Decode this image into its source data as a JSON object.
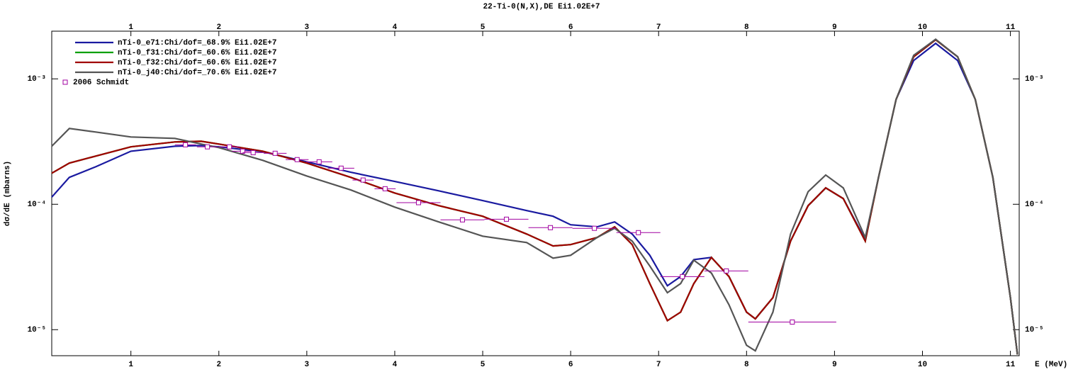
{
  "chart_data": {
    "type": "line",
    "title": "22-Ti-0(N,X),DE Ei1.02E+7",
    "xlabel": "E (MeV)",
    "ylabel": "dσ/dE (mbarns)",
    "xlim": [
      0.1,
      11.1
    ],
    "ylim": [
      6.2e-06,
      0.0024
    ],
    "log_y": true,
    "xticks": [
      1,
      2,
      3,
      4,
      5,
      6,
      7,
      8,
      9,
      10,
      11
    ],
    "yticks": [
      {
        "value": 1e-05,
        "label": "10⁻⁵"
      },
      {
        "value": 0.0001,
        "label": "10⁻⁴"
      },
      {
        "value": 0.001,
        "label": "10⁻³"
      }
    ],
    "legend": "upper left",
    "x": [
      0.1,
      0.3,
      0.6,
      1,
      1.5,
      1.8,
      2,
      2.5,
      3,
      3.5,
      4,
      4.5,
      5,
      5.5,
      5.8,
      6,
      6.3,
      6.5,
      6.7,
      6.9,
      7.1,
      7.25,
      7.4,
      7.6,
      7.8,
      8.0,
      8.1,
      8.3,
      8.5,
      8.7,
      8.9,
      9.1,
      9.35,
      9.5,
      9.7,
      9.9,
      10.15,
      10.4,
      10.6,
      10.8,
      11.0,
      11.08
    ],
    "series": [
      {
        "name": "nTi-0_e71:Chi/dof=_68.9% Ei1.02E+7",
        "color": "#1a1aa0",
        "values": [
          0.000114,
          0.000164,
          0.000199,
          0.000265,
          0.00029,
          0.000294,
          0.000287,
          0.000262,
          0.000218,
          0.00018,
          0.000152,
          0.000128,
          0.000107,
          8.9e-05,
          8.02e-05,
          6.86e-05,
          6.6e-05,
          7.23e-05,
          5.79e-05,
          3.92e-05,
          2.24e-05,
          2.65e-05,
          3.62e-05,
          3.77e-05,
          2.65e-05,
          1.38e-05,
          1.22e-05,
          1.8e-05,
          5.08e-05,
          9.75e-05,
          0.000135,
          0.000111,
          5.22e-05,
          0.000164,
          0.000686,
          0.0014,
          0.00192,
          0.0014,
          0.000686,
          0.000164,
          1.8e-05,
          6.34e-06
        ]
      },
      {
        "name": "nTi-0_f31:Chi/dof=_60.6% Ei1.02E+7",
        "color": "#00a000",
        "values": [
          0.000177,
          0.000213,
          0.000242,
          0.000287,
          0.000314,
          0.000318,
          0.000302,
          0.000265,
          0.000213,
          0.000164,
          0.000123,
          9.75e-05,
          8.02e-05,
          5.79e-05,
          4.65e-05,
          4.77e-05,
          5.43e-05,
          6.6e-05,
          4.77e-05,
          2.33e-05,
          1.18e-05,
          1.38e-05,
          2.33e-05,
          3.77e-05,
          2.65e-05,
          1.38e-05,
          1.22e-05,
          1.8e-05,
          5.08e-05,
          9.75e-05,
          0.000135,
          0.000111,
          5.08e-05,
          0.000164,
          0.000686,
          0.0015,
          0.00205,
          0.0015,
          0.000686,
          0.000164,
          1.8e-05,
          6.34e-06
        ]
      },
      {
        "name": "nTi-0_f32:Chi/dof=_60.6% Ei1.02E+7",
        "color": "#a00000",
        "values": [
          0.000177,
          0.000213,
          0.000242,
          0.000287,
          0.000314,
          0.000318,
          0.000302,
          0.000265,
          0.000213,
          0.000164,
          0.000123,
          9.75e-05,
          8.02e-05,
          5.79e-05,
          4.65e-05,
          4.77e-05,
          5.43e-05,
          6.6e-05,
          4.77e-05,
          2.33e-05,
          1.18e-05,
          1.38e-05,
          2.33e-05,
          3.77e-05,
          2.65e-05,
          1.38e-05,
          1.22e-05,
          1.8e-05,
          5.08e-05,
          9.75e-05,
          0.000135,
          0.000111,
          5.08e-05,
          0.000164,
          0.000686,
          0.0015,
          0.00205,
          0.0015,
          0.000686,
          0.000164,
          1.8e-05,
          6.34e-06
        ]
      },
      {
        "name": "nTi-0_j40:Chi/dof=_70.6% Ei1.02E+7",
        "color": "#555555",
        "values": [
          0.00029,
          0.000402,
          0.000377,
          0.000344,
          0.000335,
          0.000302,
          0.000283,
          0.000224,
          0.000168,
          0.00013,
          9.49e-05,
          7.23e-05,
          5.57e-05,
          4.95e-05,
          3.72e-05,
          3.92e-05,
          5.43e-05,
          6.43e-05,
          5.08e-05,
          3.22e-05,
          1.97e-05,
          2.33e-05,
          3.58e-05,
          2.83e-05,
          1.58e-05,
          7.51e-06,
          6.77e-06,
          1.38e-05,
          5.79e-05,
          0.000126,
          0.000171,
          0.000135,
          5.43e-05,
          0.000164,
          0.000686,
          0.00154,
          0.00207,
          0.0015,
          0.000686,
          0.000164,
          1.8e-05,
          6.34e-06
        ]
      }
    ],
    "scatter": {
      "name": "2006 Schmidt",
      "color": "#a000a0",
      "x": [
        1.62,
        1.87,
        2.12,
        2.27,
        2.39,
        2.64,
        2.89,
        3.14,
        3.39,
        3.64,
        3.89,
        4.27,
        4.77,
        5.27,
        5.77,
        6.27,
        6.77,
        7.27,
        7.77,
        8.52
      ],
      "values": [
        0.000298,
        0.000287,
        0.000287,
        0.000265,
        0.000258,
        0.000255,
        0.000227,
        0.000218,
        0.000194,
        0.000156,
        0.000133,
        0.000103,
        7.51e-05,
        7.6e-05,
        6.51e-05,
        6.43e-05,
        5.94e-05,
        2.65e-05,
        2.94e-05,
        1.15e-05
      ],
      "xerr": [
        0.12,
        0.12,
        0.12,
        0.12,
        0.12,
        0.13,
        0.13,
        0.15,
        0.15,
        0.12,
        0.12,
        0.25,
        0.25,
        0.25,
        0.25,
        0.25,
        0.25,
        0.25,
        0.25,
        0.5
      ]
    }
  }
}
